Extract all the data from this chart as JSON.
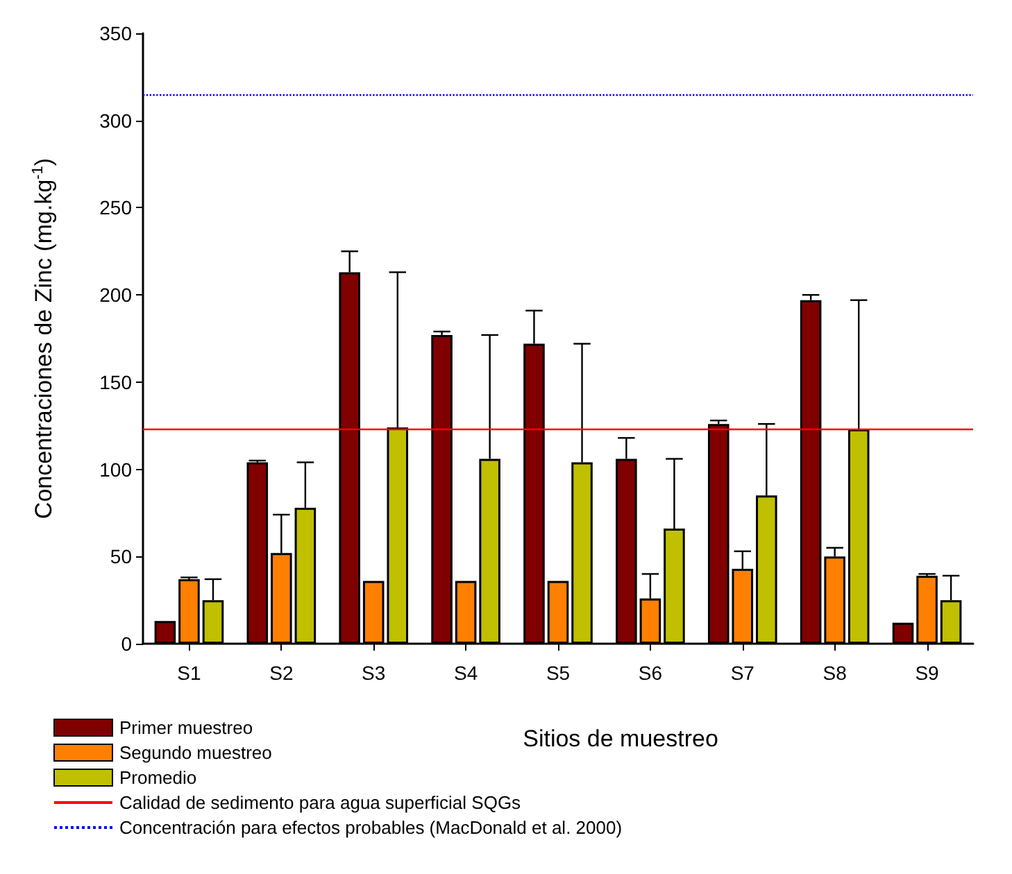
{
  "chart_data": {
    "type": "bar",
    "xlabel": "Sitios de muestreo",
    "ylabel": "Concentraciones de Zinc (mg.kg$^{-1}$)",
    "categories": [
      "S1",
      "S2",
      "S3",
      "S4",
      "S5",
      "S6",
      "S7",
      "S8",
      "S9"
    ],
    "series": [
      {
        "name": "Primer muestreo",
        "color": "#800000",
        "values": [
          13,
          104,
          213,
          177,
          172,
          106,
          126,
          197,
          12
        ],
        "errors": [
          null,
          [
            104,
            105
          ],
          [
            213,
            225
          ],
          [
            177,
            179
          ],
          [
            172,
            191
          ],
          [
            106,
            118
          ],
          [
            126,
            128
          ],
          [
            197,
            200
          ],
          null
        ]
      },
      {
        "name": "Segundo muestreo",
        "color": "#ff8000",
        "values": [
          37,
          52,
          36,
          36,
          36,
          26,
          43,
          50,
          39
        ],
        "errors": [
          [
            37,
            38
          ],
          [
            52,
            74
          ],
          null,
          null,
          null,
          [
            26,
            40
          ],
          [
            43,
            53
          ],
          [
            50,
            55
          ],
          [
            39,
            40
          ]
        ]
      },
      {
        "name": "Promedio",
        "color": "#c0c000",
        "values": [
          25,
          78,
          124,
          106,
          104,
          66,
          85,
          123,
          25
        ],
        "errors": [
          [
            25,
            37
          ],
          [
            78,
            104
          ],
          [
            124,
            213
          ],
          [
            106,
            177
          ],
          [
            104,
            172
          ],
          [
            66,
            106
          ],
          [
            85,
            126
          ],
          [
            123,
            197
          ],
          [
            25,
            39
          ]
        ]
      }
    ],
    "ref_lines": [
      {
        "axis": "y",
        "value": 123,
        "label": "Calidad de sedimento para agua superficial SQGs",
        "color": "#ff0000",
        "line_style": "solid"
      },
      {
        "axis": "y",
        "value": 315,
        "label": "Concentración para efectos probables (MacDonald et al. 2000)",
        "color": "#0000ff",
        "line_style": "dotted"
      }
    ],
    "ylim": [
      0,
      350
    ],
    "yticks": [
      0,
      50,
      100,
      150,
      200,
      250,
      300,
      350
    ],
    "grid": false,
    "legend": "bottom left"
  }
}
